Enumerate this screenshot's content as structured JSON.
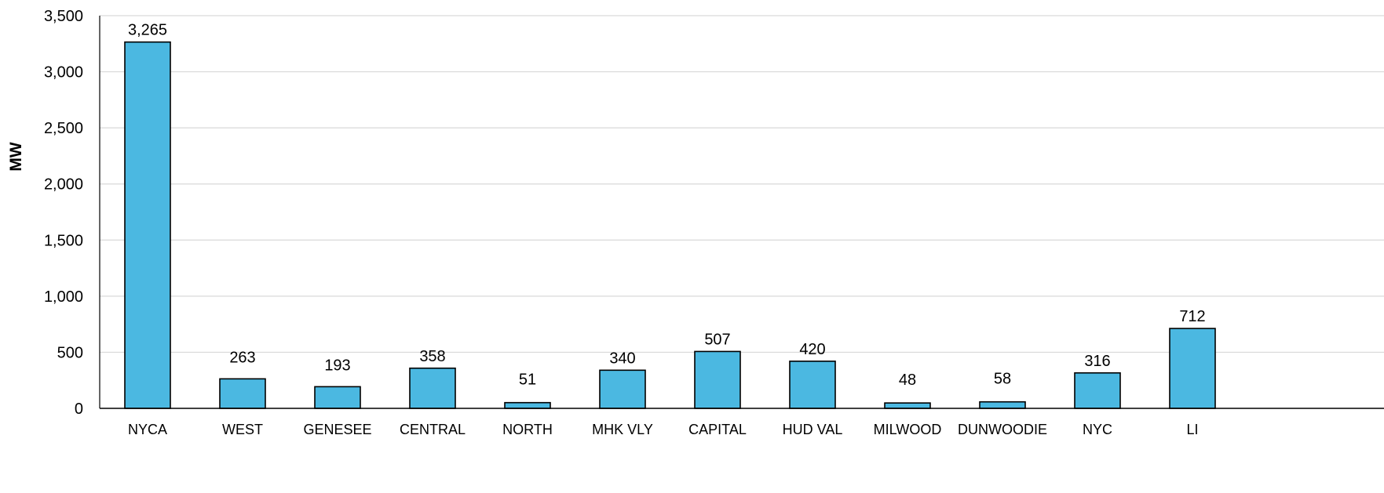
{
  "chart_data": {
    "type": "bar",
    "title": "",
    "xlabel": "",
    "ylabel": "MW",
    "ylim": [
      0,
      3500
    ],
    "yticks": [
      0,
      500,
      1000,
      1500,
      2000,
      2500,
      3000,
      3500
    ],
    "ytick_labels": [
      "0",
      "500",
      "1,000",
      "1,500",
      "2,000",
      "2,500",
      "3,000",
      "3,500"
    ],
    "grid": true,
    "categories": [
      "NYCA",
      "WEST",
      "GENESEE",
      "CENTRAL",
      "NORTH",
      "MHK VLY",
      "CAPITAL",
      "HUD VAL",
      "MILWOOD",
      "DUNWOODIE",
      "NYC",
      "LI"
    ],
    "values": [
      3265,
      263,
      193,
      358,
      51,
      340,
      507,
      420,
      48,
      58,
      316,
      712
    ],
    "data_labels": [
      "3,265",
      "263",
      "193",
      "358",
      "51",
      "340",
      "507",
      "420",
      "48",
      "58",
      "316",
      "712"
    ],
    "colors": {
      "bar_fill": "#4BB8E1",
      "bar_stroke": "#000000",
      "grid": "#D9D9D9",
      "axis": "#000000",
      "text": "#000000"
    }
  }
}
